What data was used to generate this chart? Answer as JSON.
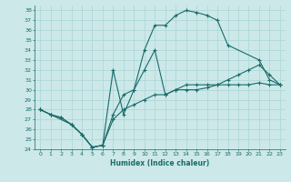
{
  "xlabel": "Humidex (Indice chaleur)",
  "xlim": [
    -0.5,
    23.5
  ],
  "ylim": [
    24,
    38.5
  ],
  "yticks": [
    24,
    25,
    26,
    27,
    28,
    29,
    30,
    31,
    32,
    33,
    34,
    35,
    36,
    37,
    38
  ],
  "xticks": [
    0,
    1,
    2,
    3,
    4,
    5,
    6,
    7,
    8,
    9,
    10,
    11,
    12,
    13,
    14,
    15,
    16,
    17,
    18,
    19,
    20,
    21,
    22,
    23
  ],
  "bg_color": "#cce8e8",
  "grid_color": "#b0d8d8",
  "line_color": "#1a6b6b",
  "line1_x": [
    0,
    1,
    2,
    3,
    4,
    5,
    6,
    7,
    8,
    9,
    10,
    11,
    12,
    13,
    14,
    15,
    16,
    17,
    18,
    19,
    20,
    21,
    22,
    23
  ],
  "line1_y": [
    28.0,
    27.5,
    27.2,
    26.5,
    25.5,
    24.2,
    24.4,
    27.0,
    28.0,
    28.5,
    29.0,
    29.5,
    29.5,
    30.0,
    30.0,
    30.0,
    30.2,
    30.5,
    30.5,
    30.5,
    30.5,
    30.7,
    30.5,
    30.5
  ],
  "line2_x": [
    0,
    1,
    3,
    4,
    5,
    6,
    7,
    8,
    9,
    10,
    11,
    12,
    13,
    14,
    15,
    16,
    17,
    18,
    21,
    22,
    23
  ],
  "line2_y": [
    28.0,
    27.5,
    26.5,
    25.5,
    24.2,
    24.4,
    32.0,
    27.5,
    30.0,
    34.0,
    36.5,
    36.5,
    37.5,
    38.0,
    37.8,
    37.5,
    37.0,
    34.5,
    33.0,
    31.0,
    30.5
  ],
  "line3_x": [
    0,
    1,
    2,
    3,
    4,
    5,
    6,
    7,
    8,
    9,
    10,
    11,
    12,
    13,
    14,
    15,
    16,
    17,
    18,
    19,
    20,
    21,
    22,
    23
  ],
  "line3_y": [
    28.0,
    27.5,
    27.2,
    26.5,
    25.5,
    24.2,
    24.4,
    27.5,
    29.5,
    30.0,
    32.0,
    34.0,
    29.5,
    30.0,
    30.5,
    30.5,
    30.5,
    30.5,
    31.0,
    31.5,
    32.0,
    32.5,
    31.5,
    30.5
  ]
}
